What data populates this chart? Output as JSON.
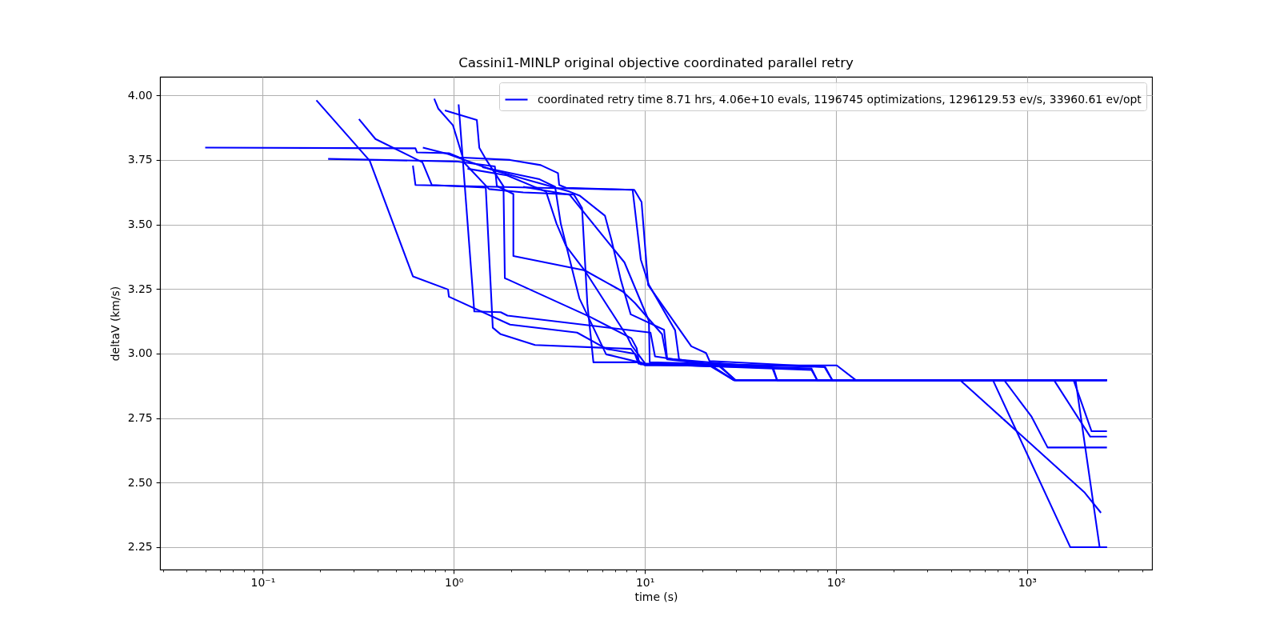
{
  "chart_data": {
    "type": "line",
    "title": "Cassini1-MINLP original objective coordinated parallel retry",
    "xlabel": "time (s)",
    "ylabel": "deltaV (km/s)",
    "log": "x",
    "grid": true,
    "legend": "top right",
    "xlim": [
      0.029,
      4510
    ],
    "ylim": [
      2.163,
      4.072
    ],
    "xticks": [
      {
        "value": 0.03,
        "label": null
      },
      {
        "value": 0.04,
        "label": null
      },
      {
        "value": 0.05,
        "label": null
      },
      {
        "value": 0.06,
        "label": null
      },
      {
        "value": 0.07,
        "label": null
      },
      {
        "value": 0.08,
        "label": null
      },
      {
        "value": 0.09,
        "label": null
      },
      {
        "value": 0.1,
        "label": "10⁻¹"
      },
      {
        "value": 0.2,
        "label": null
      },
      {
        "value": 0.3,
        "label": null
      },
      {
        "value": 0.4,
        "label": null
      },
      {
        "value": 0.5,
        "label": null
      },
      {
        "value": 0.6,
        "label": null
      },
      {
        "value": 0.7,
        "label": null
      },
      {
        "value": 0.8,
        "label": null
      },
      {
        "value": 0.9,
        "label": null
      },
      {
        "value": 1,
        "label": "10⁰"
      },
      {
        "value": 2,
        "label": null
      },
      {
        "value": 3,
        "label": null
      },
      {
        "value": 4,
        "label": null
      },
      {
        "value": 5,
        "label": null
      },
      {
        "value": 6,
        "label": null
      },
      {
        "value": 7,
        "label": null
      },
      {
        "value": 8,
        "label": null
      },
      {
        "value": 9,
        "label": null
      },
      {
        "value": 10,
        "label": "10¹"
      },
      {
        "value": 20,
        "label": null
      },
      {
        "value": 30,
        "label": null
      },
      {
        "value": 40,
        "label": null
      },
      {
        "value": 50,
        "label": null
      },
      {
        "value": 60,
        "label": null
      },
      {
        "value": 70,
        "label": null
      },
      {
        "value": 80,
        "label": null
      },
      {
        "value": 90,
        "label": null
      },
      {
        "value": 100,
        "label": "10²"
      },
      {
        "value": 200,
        "label": null
      },
      {
        "value": 300,
        "label": null
      },
      {
        "value": 400,
        "label": null
      },
      {
        "value": 500,
        "label": null
      },
      {
        "value": 600,
        "label": null
      },
      {
        "value": 700,
        "label": null
      },
      {
        "value": 800,
        "label": null
      },
      {
        "value": 900,
        "label": null
      },
      {
        "value": 1000,
        "label": "10³"
      },
      {
        "value": 2000,
        "label": null
      },
      {
        "value": 3000,
        "label": null
      },
      {
        "value": 4000,
        "label": null
      }
    ],
    "yticks": [
      2.25,
      {
        "value": 2.5,
        "label": "2.50"
      },
      2.75,
      {
        "value": 3,
        "label": "3.00"
      },
      3.25,
      {
        "value": 3.5,
        "label": "3.50"
      },
      3.75,
      {
        "value": 4,
        "label": "4.00"
      }
    ],
    "series": [
      {
        "name": "coordinated retry time 8.71 hrs, 4.06e+10 evals, 1196745 optimizations, 1296129.53 ev/s, 33960.61 ev/opt",
        "color": "#0000ff",
        "x": [
          0.191,
          0.363,
          0.611,
          0.933,
          0.943,
          1.97,
          4.42,
          6.3,
          8.89,
          9.52,
          22,
          29.2,
          2620
        ],
        "values": [
          3.981,
          3.747,
          3.299,
          3.248,
          3.22,
          3.112,
          3.081,
          3.018,
          2.999,
          2.958,
          2.951,
          2.897,
          2.897
        ]
      },
      {
        "color": "#0000ff",
        "x": [
          0.05,
          0.63,
          0.642,
          0.943,
          1.066,
          1.97,
          2.85,
          3.51,
          3.56,
          3.87,
          8.63,
          9.52,
          10.5,
          14.4,
          15.1,
          22,
          29.2,
          447,
          2005,
          2438
        ],
        "values": [
          3.798,
          3.795,
          3.779,
          3.776,
          3.76,
          3.75,
          3.73,
          3.699,
          3.653,
          3.642,
          3.634,
          3.364,
          3.266,
          3.09,
          2.977,
          2.955,
          2.897,
          2.897,
          2.461,
          2.383
        ]
      },
      {
        "color": "#0000ff",
        "x": [
          0.22,
          1.03,
          1.64,
          1.68,
          2.05,
          2.05,
          4.85,
          7.67,
          8.89,
          12.3,
          13,
          46.9,
          49.2,
          2620
        ],
        "values": [
          3.754,
          3.744,
          3.725,
          3.649,
          3.618,
          3.378,
          3.322,
          3.24,
          3.195,
          3.075,
          2.98,
          2.945,
          2.897,
          2.897
        ]
      },
      {
        "color": "#0000ff",
        "x": [
          0.319,
          0.389,
          0.685,
          0.767,
          1.47,
          1.6,
          1.75,
          2.66,
          8.46,
          8.89,
          9.25,
          74.5,
          79.8,
          663,
          1684,
          2620
        ],
        "values": [
          3.908,
          3.831,
          3.741,
          3.653,
          3.643,
          3.1,
          3.076,
          3.033,
          3.018,
          2.996,
          2.961,
          2.936,
          2.897,
          2.897,
          2.25,
          2.25
        ]
      },
      {
        "color": "#0000ff",
        "x": [
          0.611,
          0.63,
          8.8,
          9.61,
          10.4,
          17.5,
          20.9,
          21.8,
          87.1,
          95.7,
          759,
          1057,
          1282,
          2620
        ],
        "values": [
          3.728,
          3.653,
          3.634,
          3.587,
          3.266,
          3.028,
          3.002,
          2.971,
          2.948,
          2.897,
          2.897,
          2.755,
          2.636,
          2.636
        ]
      },
      {
        "color": "#0000ff",
        "x": [
          0.79,
          0.829,
          0.99,
          1.137,
          1.53,
          2.31,
          4.25,
          4.69,
          5,
          5.38,
          9.52,
          10,
          101,
          127,
          1384,
          2143,
          2620
        ],
        "values": [
          3.987,
          3.949,
          3.884,
          3.738,
          3.637,
          3.624,
          3.616,
          3.564,
          3.193,
          2.966,
          2.966,
          2.954,
          2.954,
          2.897,
          2.897,
          2.678,
          2.678
        ]
      },
      {
        "color": "#0000ff",
        "x": [
          1.06,
          1.28,
          1.76,
          1.91,
          10.7,
          11.3,
          24.5,
          29.8,
          1753,
          2177,
          2620
        ],
        "values": [
          3.965,
          3.163,
          3.16,
          3.147,
          3.081,
          2.989,
          2.951,
          2.897,
          2.897,
          2.699,
          2.699
        ]
      },
      {
        "color": "#0000ff",
        "x": [
          0.898,
          1.32,
          1.36,
          1.48,
          1.82,
          1.85,
          1.93,
          5.17,
          8.5,
          9.06,
          9.33,
          22,
          29.2,
          1795,
          2399,
          2620
        ],
        "values": [
          3.942,
          3.905,
          3.797,
          3.75,
          3.648,
          3.292,
          3.286,
          3.142,
          3.059,
          3.021,
          2.961,
          2.955,
          2.897,
          2.897,
          2.25,
          2.25
        ]
      },
      {
        "color": "#0000ff",
        "x": [
          0.689,
          0.933,
          1.56,
          2.55,
          4.04,
          4.55,
          6.18,
          6.68,
          7.48,
          8.43,
          12.6,
          13.1,
          24.5,
          29.8,
          2620
        ],
        "values": [
          3.798,
          3.773,
          3.713,
          3.668,
          3.627,
          3.612,
          3.534,
          3.441,
          3.286,
          3.152,
          3.092,
          2.977,
          2.955,
          2.897,
          2.897
        ]
      },
      {
        "color": "#0000ff",
        "x": [
          1.18,
          1.9,
          3.04,
          3.45,
          3.87,
          4.84,
          8.1,
          8.5,
          10.1,
          46.4,
          49.2,
          2620
        ],
        "values": [
          3.716,
          3.69,
          3.627,
          3.503,
          3.416,
          3.322,
          3.065,
          3.033,
          2.958,
          2.945,
          2.897,
          2.897
        ]
      },
      {
        "color": "#0000ff",
        "x": [
          1.41,
          2.81,
          3.39,
          3.63,
          4.54,
          6.27,
          10,
          74.5,
          79.8,
          2620
        ],
        "values": [
          3.722,
          3.675,
          3.646,
          3.503,
          3.214,
          2.997,
          2.961,
          2.942,
          2.897,
          2.897
        ]
      },
      {
        "color": "#0000ff",
        "x": [
          2.31,
          4.04,
          7.82,
          10.5,
          10.6,
          87.9,
          95.7,
          2620
        ],
        "values": [
          3.646,
          3.615,
          3.353,
          3.126,
          2.966,
          2.948,
          2.897,
          2.897
        ]
      }
    ]
  }
}
